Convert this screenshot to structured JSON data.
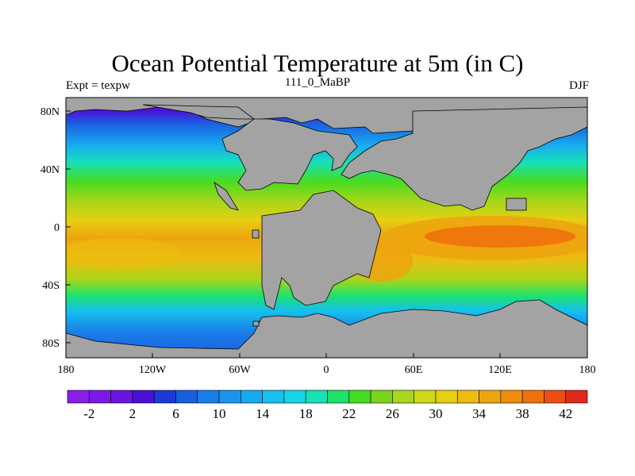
{
  "title": "Ocean Potential Temperature at 5m (in C)",
  "left_label": "Expt = texpw",
  "center_label": "111_0_MaBP",
  "right_label": "DJF",
  "lat_ticks": [
    "80N",
    "40N",
    "0",
    "40S",
    "80S"
  ],
  "lon_ticks": [
    "180",
    "120W",
    "60W",
    "0",
    "60E",
    "120E",
    "180"
  ],
  "colorbar": {
    "labels": [
      "-2",
      "2",
      "6",
      "10",
      "14",
      "18",
      "22",
      "26",
      "30",
      "34",
      "38",
      "42"
    ],
    "colors": [
      "#8a1fe6",
      "#7a1ae6",
      "#6a14e0",
      "#4b10d6",
      "#1c3ad8",
      "#1a5ee0",
      "#1a7ee8",
      "#1a95ee",
      "#18aaf0",
      "#16c0ef",
      "#16d4e6",
      "#18e0b8",
      "#1ee26a",
      "#46dc22",
      "#7ad41e",
      "#a8d61a",
      "#cfd816",
      "#e6d012",
      "#ecbd10",
      "#eda50e",
      "#ee8e0c",
      "#ee720c",
      "#ec4e16",
      "#e02a1c"
    ],
    "land": "#a3a3a3"
  },
  "chart_data": {
    "type": "heatmap",
    "variable": "Ocean Potential Temperature at 5m (in C)",
    "season": "DJF",
    "units": "C",
    "x_ticks": [
      "180",
      "120W",
      "60W",
      "0",
      "60E",
      "120E",
      "180"
    ],
    "y_ticks": [
      "80N",
      "40N",
      "0",
      "40S",
      "80S"
    ],
    "levels": [
      -2,
      2,
      6,
      10,
      14,
      18,
      22,
      26,
      30,
      34,
      38,
      42
    ]
  }
}
